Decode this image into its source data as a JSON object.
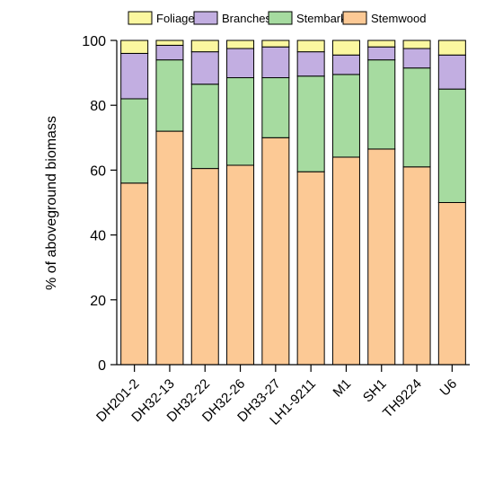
{
  "chart_data": {
    "type": "bar",
    "stacked": true,
    "title": "",
    "xlabel": "",
    "ylabel": "% of aboveground biomass",
    "ylim": [
      0,
      100
    ],
    "yticks": [
      0,
      20,
      40,
      60,
      80,
      100
    ],
    "grid": false,
    "legend_position": "top",
    "categories": [
      "DH201-2",
      "DH32-13",
      "DH32-22",
      "DH32-26",
      "DH33-27",
      "LH1-9211",
      "M1",
      "SH1",
      "TH9224",
      "U6"
    ],
    "series": [
      {
        "name": "Stemwood",
        "color": "#fcc995",
        "values": [
          56,
          72,
          60.5,
          61.5,
          70,
          59.5,
          64,
          66.5,
          61,
          50
        ]
      },
      {
        "name": "Stembark",
        "color": "#a6dba0",
        "values": [
          26,
          22,
          26,
          27,
          18.5,
          29.5,
          25.5,
          27.5,
          30.5,
          35
        ]
      },
      {
        "name": "Branches",
        "color": "#c2aee1",
        "values": [
          14,
          4.5,
          10,
          9,
          9.5,
          7.5,
          6,
          4,
          6,
          10.5
        ]
      },
      {
        "name": "Foliage",
        "color": "#fbf7a0",
        "values": [
          4,
          1.5,
          3.5,
          2.5,
          2,
          3.5,
          4.5,
          2,
          2.5,
          4.5
        ]
      }
    ],
    "legend_order": [
      "Foliage",
      "Branches",
      "Stembark",
      "Stemwood"
    ]
  }
}
